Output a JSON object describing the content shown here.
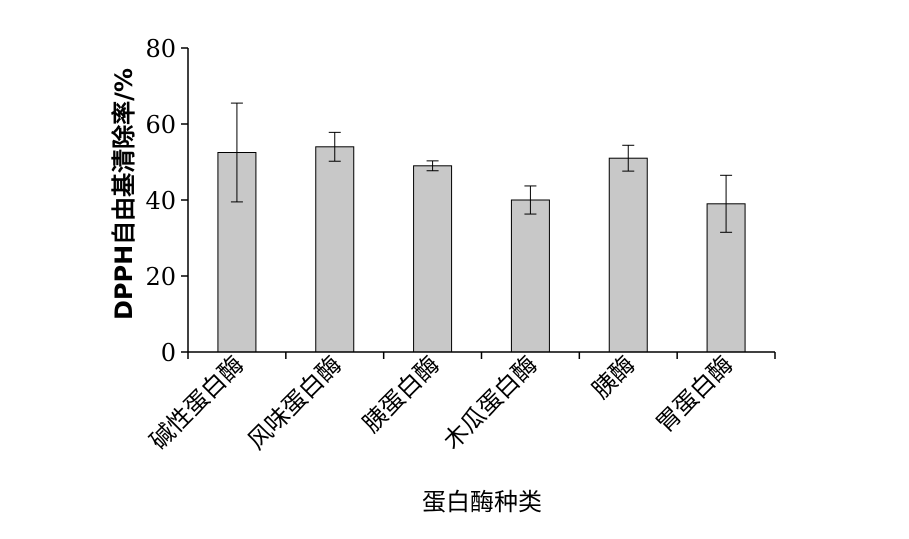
{
  "chart_data": {
    "type": "bar",
    "categories": [
      "碱性蛋白酶",
      "风味蛋白酶",
      "胰蛋白酶",
      "木瓜蛋白酶",
      "胰酶",
      "胃蛋白酶"
    ],
    "values": [
      52.5,
      54.0,
      49.0,
      40.0,
      51.0,
      39.0
    ],
    "error": [
      13.0,
      3.8,
      1.3,
      3.7,
      3.4,
      7.5
    ],
    "xlabel": "蛋白酶种类",
    "ylabel": "DPPH自由基清除率/%",
    "ylim": [
      0,
      80
    ],
    "yticks": [
      0,
      20,
      40,
      60,
      80
    ],
    "grid": false,
    "colors": {
      "bar_fill": "#c8c8c8",
      "bar_stroke": "#000000",
      "axis": "#000000"
    }
  }
}
